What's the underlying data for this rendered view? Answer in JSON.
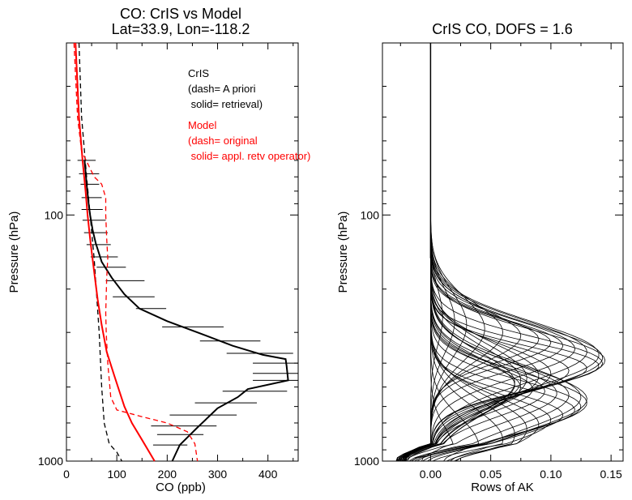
{
  "chart_data": [
    {
      "type": "line",
      "title": "CO: CrIS vs Model",
      "subtitle": "Lat=33.9, Lon=-118.2",
      "xlabel": "CO (ppb)",
      "ylabel": "Pressure (hPa)",
      "xlim": [
        0,
        460
      ],
      "ylim": [
        1000,
        20
      ],
      "yscale": "log",
      "xticks": [
        "0",
        "100",
        "200",
        "300",
        "400"
      ],
      "yticks": [
        "100",
        "1000"
      ],
      "legend": {
        "cris_label": "CrIS",
        "cris_dash": "(dash= A priori",
        "cris_solid": " solid= retrieval)",
        "model_label": "Model",
        "model_dash": "(dash= original",
        "model_solid": " solid= appl. retv operator)",
        "placement": "top-right"
      },
      "series": [
        {
          "name": "A priori",
          "color": "#000000",
          "style": "dashed",
          "points": [
            [
              25,
              20
            ],
            [
              30,
              40
            ],
            [
              40,
              70
            ],
            [
              55,
              150
            ],
            [
              65,
              300
            ],
            [
              70,
              500
            ],
            [
              75,
              700
            ],
            [
              85,
              850
            ],
            [
              100,
              920
            ],
            [
              110,
              1000
            ]
          ]
        },
        {
          "name": "retrieval",
          "color": "#000000",
          "style": "solid",
          "points": [
            [
              36,
              60
            ],
            [
              40,
              75
            ],
            [
              44,
              90
            ],
            [
              47,
              100
            ],
            [
              52,
              115
            ],
            [
              58,
              130
            ],
            [
              70,
              155
            ],
            [
              90,
              180
            ],
            [
              115,
              210
            ],
            [
              145,
              240
            ],
            [
              200,
              270
            ],
            [
              260,
              300
            ],
            [
              330,
              340
            ],
            [
              390,
              370
            ],
            [
              435,
              385
            ],
            [
              437,
              410
            ],
            [
              440,
              470
            ],
            [
              360,
              510
            ],
            [
              340,
              550
            ],
            [
              300,
              610
            ],
            [
              260,
              730
            ],
            [
              225,
              860
            ],
            [
              210,
              1000
            ]
          ]
        },
        {
          "name": "Model original",
          "color": "#ff0000",
          "style": "dashed",
          "points": [
            [
              15,
              20
            ],
            [
              22,
              40
            ],
            [
              30,
              55
            ],
            [
              55,
              70
            ],
            [
              70,
              75
            ],
            [
              78,
              85
            ],
            [
              78,
              100
            ],
            [
              80,
              125
            ],
            [
              82,
              150
            ],
            [
              80,
              180
            ],
            [
              78,
              250
            ],
            [
              79,
              300
            ],
            [
              82,
              400
            ],
            [
              88,
              550
            ],
            [
              100,
              620
            ],
            [
              150,
              660
            ],
            [
              200,
              700
            ],
            [
              240,
              760
            ],
            [
              255,
              850
            ],
            [
              260,
              1000
            ]
          ]
        },
        {
          "name": "appl. retv operator",
          "color": "#ff0000",
          "style": "solid",
          "points": [
            [
              18,
              20
            ],
            [
              25,
              40
            ],
            [
              32,
              60
            ],
            [
              38,
              80
            ],
            [
              42,
              100
            ],
            [
              48,
              130
            ],
            [
              55,
              170
            ],
            [
              62,
              220
            ],
            [
              70,
              280
            ],
            [
              80,
              360
            ],
            [
              95,
              450
            ],
            [
              105,
              520
            ],
            [
              115,
              600
            ],
            [
              130,
              700
            ],
            [
              150,
              820
            ],
            [
              175,
              1000
            ]
          ]
        }
      ],
      "error_bars": {
        "color": "#000000",
        "rows": [
          {
            "p": 60,
            "lo": 22,
            "hi": 58
          },
          {
            "p": 68,
            "lo": 25,
            "hi": 65
          },
          {
            "p": 75,
            "lo": 28,
            "hi": 65
          },
          {
            "p": 85,
            "lo": 30,
            "hi": 70
          },
          {
            "p": 95,
            "lo": 30,
            "hi": 72
          },
          {
            "p": 105,
            "lo": 32,
            "hi": 78
          },
          {
            "p": 118,
            "lo": 35,
            "hi": 82
          },
          {
            "p": 132,
            "lo": 40,
            "hi": 88
          },
          {
            "p": 148,
            "lo": 48,
            "hi": 102
          },
          {
            "p": 163,
            "lo": 60,
            "hi": 118
          },
          {
            "p": 185,
            "lo": 78,
            "hi": 155
          },
          {
            "p": 215,
            "lo": 92,
            "hi": 175
          },
          {
            "p": 240,
            "lo": 138,
            "hi": 198
          },
          {
            "p": 285,
            "lo": 190,
            "hi": 312
          },
          {
            "p": 325,
            "lo": 265,
            "hi": 385
          },
          {
            "p": 365,
            "lo": 318,
            "hi": 450
          },
          {
            "p": 400,
            "lo": 370,
            "hi": 460
          },
          {
            "p": 440,
            "lo": 370,
            "hi": 460
          },
          {
            "p": 470,
            "lo": 370,
            "hi": 460
          },
          {
            "p": 520,
            "lo": 310,
            "hi": 438
          },
          {
            "p": 580,
            "lo": 255,
            "hi": 378
          },
          {
            "p": 650,
            "lo": 205,
            "hi": 338
          },
          {
            "p": 720,
            "lo": 168,
            "hi": 298
          },
          {
            "p": 780,
            "lo": 180,
            "hi": 272
          },
          {
            "p": 860,
            "lo": 172,
            "hi": 240
          }
        ]
      }
    },
    {
      "type": "line",
      "title": "CrIS CO, DOFS = 1.6",
      "xlabel": "Rows of AK",
      "ylabel": "Pressure (hPa)",
      "xlim": [
        -0.04,
        0.16
      ],
      "ylim": [
        1000,
        20
      ],
      "yscale": "log",
      "xticks": [
        "0.00",
        "0.05",
        "0.10",
        "0.15"
      ],
      "yticks": [
        "100",
        "1000"
      ],
      "line_color": "#000000",
      "rows_count": 42,
      "peak_profile": {
        "description_free": true,
        "peak_pressures": [
          260,
          270,
          280,
          290,
          300,
          310,
          320,
          330,
          340,
          350,
          360,
          370,
          380,
          390,
          400,
          410,
          420,
          430,
          440,
          450,
          460,
          470,
          480,
          490,
          500,
          510,
          520,
          530,
          540,
          550,
          560,
          580,
          600,
          620,
          650,
          680,
          710,
          740,
          780,
          820,
          870,
          930
        ],
        "peak_values": [
          0.01,
          0.02,
          0.03,
          0.045,
          0.06,
          0.075,
          0.09,
          0.1,
          0.11,
          0.12,
          0.13,
          0.14,
          0.143,
          0.145,
          0.143,
          0.14,
          0.13,
          0.115,
          0.1,
          0.09,
          0.08,
          0.075,
          0.07,
          0.07,
          0.075,
          0.085,
          0.095,
          0.105,
          0.115,
          0.125,
          0.13,
          0.13,
          0.125,
          0.12,
          0.11,
          0.1,
          0.09,
          0.08,
          0.07,
          0.06,
          0.04,
          0.02
        ]
      }
    }
  ]
}
